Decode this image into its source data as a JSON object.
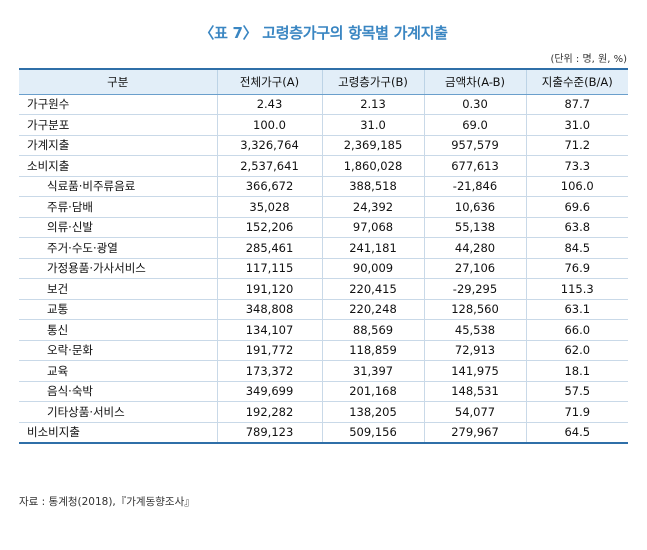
{
  "title": "〈표 7〉 고령층가구의 항목별 가계지출",
  "unit": "(단위 : 명, 원, %)",
  "table": {
    "headers": [
      "구분",
      "전체가구(A)",
      "고령층가구(B)",
      "금액차(A-B)",
      "지출수준(B/A)"
    ],
    "rows": [
      {
        "label": "가구원수",
        "sub": false,
        "values": [
          "2.43",
          "2.13",
          "0.30",
          "87.7"
        ]
      },
      {
        "label": "가구분포",
        "sub": false,
        "values": [
          "100.0",
          "31.0",
          "69.0",
          "31.0"
        ]
      },
      {
        "label": "가계지출",
        "sub": false,
        "values": [
          "3,326,764",
          "2,369,185",
          "957,579",
          "71.2"
        ]
      },
      {
        "label": "소비지출",
        "sub": false,
        "values": [
          "2,537,641",
          "1,860,028",
          "677,613",
          "73.3"
        ]
      },
      {
        "label": "식료품·비주류음료",
        "sub": true,
        "values": [
          "366,672",
          "388,518",
          "-21,846",
          "106.0"
        ]
      },
      {
        "label": "주류·담배",
        "sub": true,
        "values": [
          "35,028",
          "24,392",
          "10,636",
          "69.6"
        ]
      },
      {
        "label": "의류·신발",
        "sub": true,
        "values": [
          "152,206",
          "97,068",
          "55,138",
          "63.8"
        ]
      },
      {
        "label": "주거·수도·광열",
        "sub": true,
        "values": [
          "285,461",
          "241,181",
          "44,280",
          "84.5"
        ]
      },
      {
        "label": "가정용품·가사서비스",
        "sub": true,
        "values": [
          "117,115",
          "90,009",
          "27,106",
          "76.9"
        ]
      },
      {
        "label": "보건",
        "sub": true,
        "values": [
          "191,120",
          "220,415",
          "-29,295",
          "115.3"
        ]
      },
      {
        "label": "교통",
        "sub": true,
        "values": [
          "348,808",
          "220,248",
          "128,560",
          "63.1"
        ]
      },
      {
        "label": "통신",
        "sub": true,
        "values": [
          "134,107",
          "88,569",
          "45,538",
          "66.0"
        ]
      },
      {
        "label": "오락·문화",
        "sub": true,
        "values": [
          "191,772",
          "118,859",
          "72,913",
          "62.0"
        ]
      },
      {
        "label": "교육",
        "sub": true,
        "values": [
          "173,372",
          "31,397",
          "141,975",
          "18.1"
        ]
      },
      {
        "label": "음식·숙박",
        "sub": true,
        "values": [
          "349,699",
          "201,168",
          "148,531",
          "57.5"
        ]
      },
      {
        "label": "기타상품·서비스",
        "sub": true,
        "values": [
          "192,282",
          "138,205",
          "54,077",
          "71.9"
        ]
      },
      {
        "label": "비소비지출",
        "sub": false,
        "values": [
          "789,123",
          "509,156",
          "279,967",
          "64.5"
        ]
      }
    ]
  },
  "source": "자료 : 통계청(2018),『가계동향조사』"
}
